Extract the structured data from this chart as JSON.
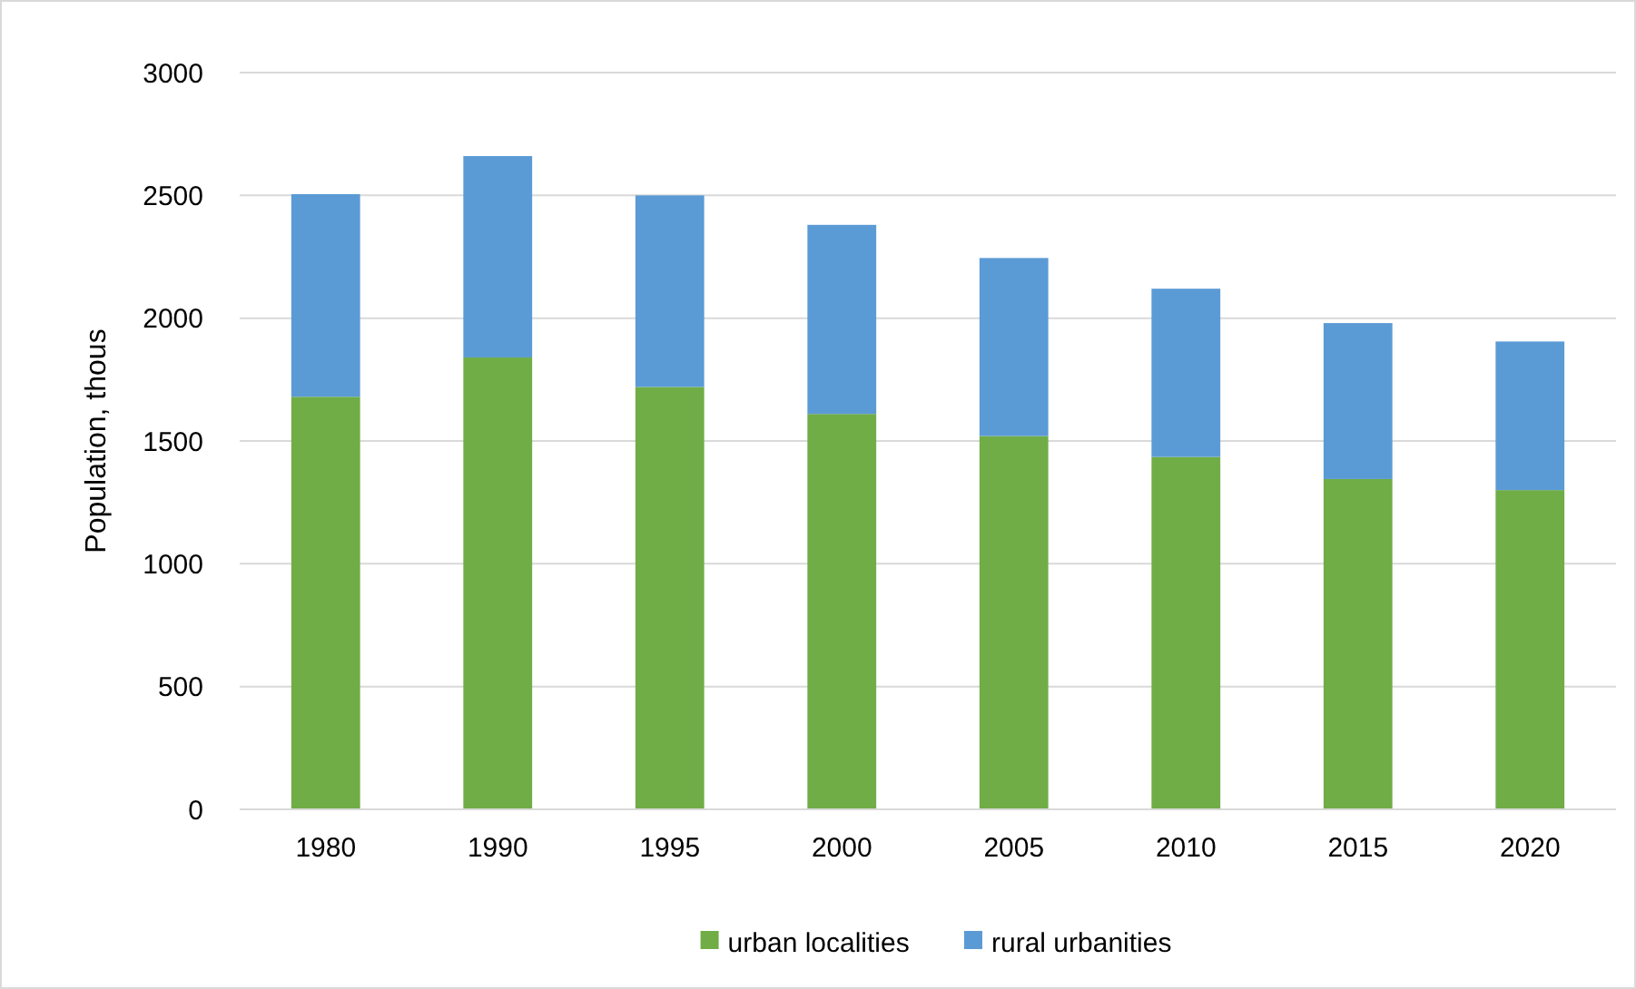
{
  "chart_data": {
    "type": "bar",
    "stacked": true,
    "ylabel": "Population, thous",
    "categories": [
      "1980",
      "1990",
      "1995",
      "2000",
      "2005",
      "2010",
      "2015",
      "2020"
    ],
    "series": [
      {
        "name": "urban localities",
        "color": "#70ad47",
        "values": [
          1680,
          1840,
          1720,
          1610,
          1520,
          1435,
          1345,
          1300
        ]
      },
      {
        "name": "rural urbanities",
        "color": "#5b9bd5",
        "values": [
          825,
          820,
          780,
          770,
          725,
          685,
          635,
          605
        ]
      }
    ],
    "ylim": [
      0,
      3000
    ],
    "yticks": [
      0,
      500,
      1000,
      1500,
      2000,
      2500,
      3000
    ],
    "grid": "y",
    "legend": "bottom"
  }
}
